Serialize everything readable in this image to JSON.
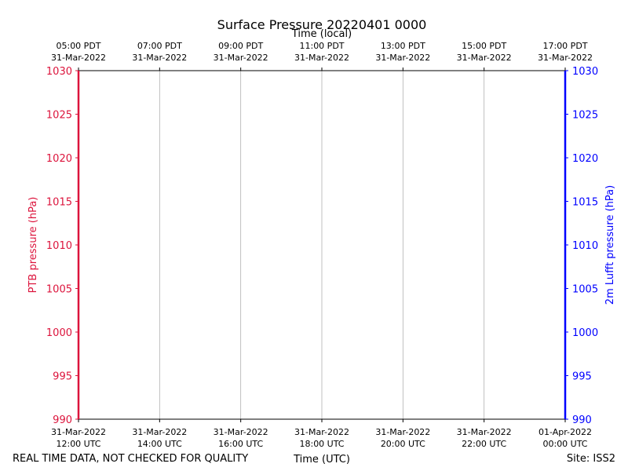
{
  "chart_data": {
    "type": "line",
    "title": "Surface Pressure 20220401 0000",
    "x_top_label": "Time (local)",
    "x_bottom_label": "Time (UTC)",
    "y_left_label": "PTB pressure (hPa)",
    "y_right_label": "2m Lufft pressure (hPa)",
    "ylim": [
      990,
      1030
    ],
    "yticks": [
      990,
      995,
      1000,
      1005,
      1010,
      1015,
      1020,
      1025,
      1030
    ],
    "x_ticks_utc": [
      {
        "line1": "31-Mar-2022",
        "line2": "12:00 UTC"
      },
      {
        "line1": "31-Mar-2022",
        "line2": "14:00 UTC"
      },
      {
        "line1": "31-Mar-2022",
        "line2": "16:00 UTC"
      },
      {
        "line1": "31-Mar-2022",
        "line2": "18:00 UTC"
      },
      {
        "line1": "31-Mar-2022",
        "line2": "20:00 UTC"
      },
      {
        "line1": "31-Mar-2022",
        "line2": "22:00 UTC"
      },
      {
        "line1": "01-Apr-2022",
        "line2": "00:00 UTC"
      }
    ],
    "x_ticks_local": [
      {
        "line1": "05:00 PDT",
        "line2": "31-Mar-2022"
      },
      {
        "line1": "07:00 PDT",
        "line2": "31-Mar-2022"
      },
      {
        "line1": "09:00 PDT",
        "line2": "31-Mar-2022"
      },
      {
        "line1": "11:00 PDT",
        "line2": "31-Mar-2022"
      },
      {
        "line1": "13:00 PDT",
        "line2": "31-Mar-2022"
      },
      {
        "line1": "15:00 PDT",
        "line2": "31-Mar-2022"
      },
      {
        "line1": "17:00 PDT",
        "line2": "31-Mar-2022"
      }
    ],
    "grid": "vertical",
    "series": [
      {
        "axis": "left",
        "color": "#dc143c",
        "points": []
      },
      {
        "axis": "right",
        "color": "#0000ff",
        "points": []
      }
    ],
    "left_axis_color": "#dc143c",
    "right_axis_color": "#0000ff"
  },
  "footer": {
    "disclaimer": "REAL TIME DATA, NOT CHECKED FOR QUALITY",
    "site": "Site: ISS2"
  }
}
